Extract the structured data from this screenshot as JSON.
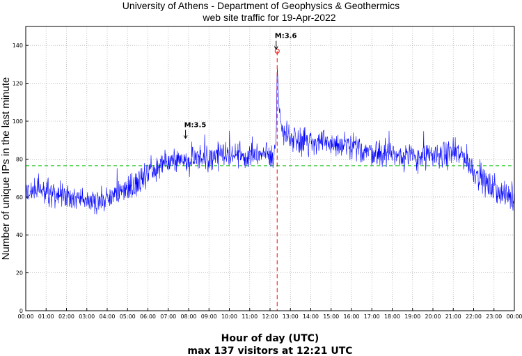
{
  "chart_data": {
    "type": "line",
    "title": "University of Athens - Department of Geophysics & Geothermics",
    "subtitle": "web site traffic for 19-Apr-2022",
    "xlabel": "Hour of day (UTC)",
    "ylabel": "Number of unique IPs in the last minute",
    "footer": "max 137 visitors at 12:21 UTC",
    "xlim": [
      0,
      24
    ],
    "ylim": [
      0,
      150
    ],
    "x_ticks": [
      "00:00",
      "01:00",
      "02:00",
      "03:00",
      "04:00",
      "05:00",
      "06:00",
      "07:00",
      "08:00",
      "09:00",
      "10:00",
      "11:00",
      "12:00",
      "13:00",
      "14:00",
      "15:00",
      "16:00",
      "17:00",
      "18:00",
      "19:00",
      "20:00",
      "21:00",
      "22:00",
      "23:00",
      "00:00"
    ],
    "y_ticks": [
      0,
      20,
      40,
      60,
      80,
      100,
      120,
      140
    ],
    "grid": true,
    "average_line": {
      "value": 76.5,
      "color": "#00c000",
      "style": "dashed"
    },
    "max_marker": {
      "hour": 12.35,
      "value": 137,
      "color": "#ff0000"
    },
    "annotations": [
      {
        "text": "M:3.5",
        "hour": 7.85,
        "value": 91
      },
      {
        "text": "M:3.6",
        "hour": 12.3,
        "value": 138
      }
    ],
    "series": [
      {
        "name": "unique IPs per minute",
        "color": "#0000ff",
        "hours": [
          0,
          0.5,
          1,
          1.5,
          2,
          2.5,
          3,
          3.5,
          4,
          4.5,
          5,
          5.5,
          6,
          6.5,
          7,
          7.5,
          8,
          8.5,
          9,
          9.5,
          10,
          10.5,
          11,
          11.5,
          12,
          12.2,
          12.3,
          12.35,
          12.45,
          12.6,
          13,
          13.5,
          14,
          14.5,
          15,
          15.5,
          16,
          16.5,
          17,
          17.5,
          18,
          18.5,
          19,
          19.5,
          20,
          20.5,
          21,
          21.5,
          22,
          22.5,
          23,
          23.5,
          24
        ],
        "values": [
          62,
          64,
          62,
          61,
          60,
          60,
          59,
          58,
          59,
          62,
          65,
          68,
          72,
          75,
          78,
          79,
          80,
          81,
          81,
          81,
          82,
          82,
          83,
          82,
          82,
          82,
          90,
          130,
          105,
          95,
          92,
          90,
          89,
          89,
          88,
          87,
          86,
          85,
          84,
          83,
          82,
          82,
          81,
          81,
          82,
          82,
          83,
          82,
          74,
          68,
          64,
          61,
          59
        ],
        "noise": 5
      }
    ]
  }
}
